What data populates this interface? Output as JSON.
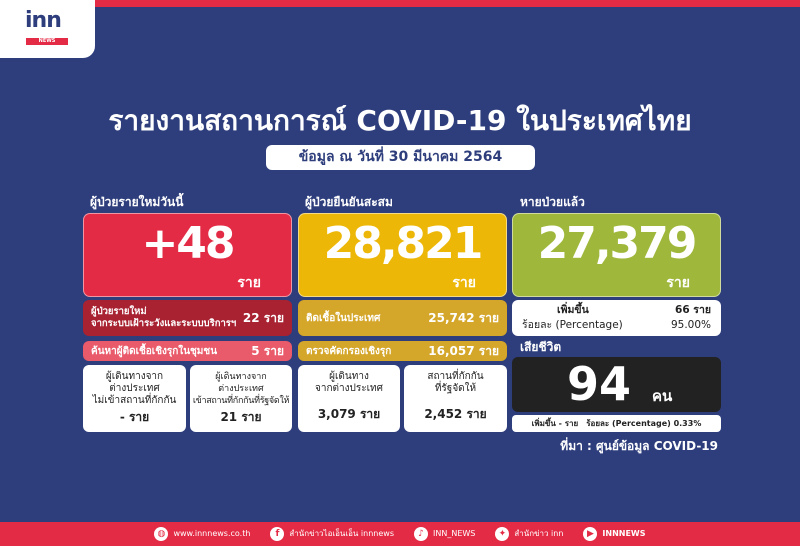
{
  "brand": {
    "logo": "inn",
    "logo_sub": "NEWS"
  },
  "title": "รายงานสถานการณ์ COVID-19 ในประเทศไทย",
  "subtitle": "ข้อมูล ณ วันที่ 30 มีนาคม 2564",
  "colors": {
    "background": "#2e3e7c",
    "new_cases": "#e32b45",
    "cumulative": "#edb708",
    "recovered": "#9fb83b",
    "deaths": "#222222"
  },
  "new_cases": {
    "label": "ผู้ป่วยรายใหม่วันนี้",
    "value": "+48",
    "unit": "ราย",
    "surveillance": {
      "label_line1": "ผู้ป่วยรายใหม่",
      "label_line2": "จากระบบเฝ้าระวังและระบบบริการฯ",
      "value": "22 ราย"
    },
    "community": {
      "label": "ค้นหาผู้ติดเชื้อเชิงรุกในชุมชน",
      "value": "5 ราย"
    },
    "travel_no_quarantine": {
      "lines": [
        "ผู้เดินทางจาก",
        "ต่างประเทศ",
        "ไม่เข้าสถานที่กักกัน"
      ],
      "value": "- ราย"
    },
    "travel_quarantine": {
      "lines": [
        "ผู้เดินทางจาก",
        "ต่างประเทศ",
        "เข้าสถานที่กักกันที่รัฐจัดให้"
      ],
      "value": "21 ราย"
    }
  },
  "cumulative": {
    "label": "ผู้ป่วยยืนยันสะสม",
    "value": "28,821",
    "unit": "ราย",
    "domestic": {
      "label": "ติดเชื้อในประเทศ",
      "value": "25,742 ราย"
    },
    "active_screening": {
      "label": "ตรวจคัดกรองเชิงรุก",
      "value": "16,057 ราย"
    },
    "travelers": {
      "lines": [
        "ผู้เดินทาง",
        "จากต่างประเทศ"
      ],
      "value": "3,079 ราย"
    },
    "state_quarantine": {
      "lines": [
        "สถานที่กักกัน",
        "ที่รัฐจัดให้"
      ],
      "value": "2,452 ราย"
    }
  },
  "recovered": {
    "label": "หายป่วยแล้ว",
    "value": "27,379",
    "unit": "ราย",
    "increase_label": "เพิ่มขึ้น",
    "increase_value": "66 ราย",
    "pct_label": "ร้อยละ (Percentage)",
    "pct_value": "95.00%"
  },
  "deaths": {
    "label": "เสียชีวิต",
    "value": "94",
    "unit": "คน",
    "increase": "เพิ่มขึ้น - ราย",
    "pct": "ร้อยละ (Percentage) 0.33%"
  },
  "source": "ที่มา : ศูนย์ข้อมูล COVID-19",
  "footer": [
    {
      "icon": "globe-icon",
      "glyph": "◍",
      "text": "www.innnews.co.th"
    },
    {
      "icon": "facebook-icon",
      "glyph": "f",
      "text": "สำนักข่าวไอเอ็นเอ็น innnews"
    },
    {
      "icon": "tiktok-icon",
      "glyph": "♪",
      "text": "INN_NEWS"
    },
    {
      "icon": "twitter-icon",
      "glyph": "✦",
      "text": "สำนักข่าว inn"
    },
    {
      "icon": "youtube-icon",
      "glyph": "▶",
      "text": "INNNEWS"
    }
  ]
}
